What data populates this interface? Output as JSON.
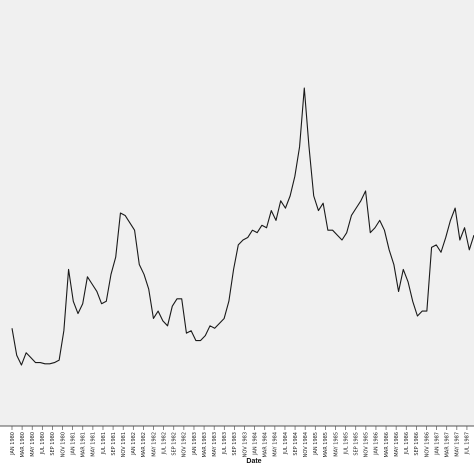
{
  "colors": {
    "plot_background": "#f0f0f0",
    "line": "#1a1a1a",
    "axis": "#555555"
  },
  "chart_data": {
    "type": "line",
    "title": "",
    "xlabel": "Date",
    "ylabel": "",
    "grid": false,
    "legend": "none",
    "tick_labels": [
      "JAN 1980",
      "MAR 1980",
      "MAY 1980",
      "JUL 1980",
      "SEP 1980",
      "NOV 1980",
      "JAN 1981",
      "MAR 1981",
      "MAY 1981",
      "JUL 1981",
      "SEP 1981",
      "NOV 1981",
      "JAN 1982",
      "MAR 1982",
      "MAY 1982",
      "JUL 1982",
      "SEP 1982",
      "NOV 1982",
      "JAN 1983",
      "MAR 1983",
      "MAY 1983",
      "JUL 1983",
      "SEP 1983",
      "NOV 1983",
      "JAN 1984",
      "MAR 1984",
      "MAY 1984",
      "JUL 1984",
      "SEP 1984",
      "NOV 1984",
      "JAN 1985",
      "MAR 1985",
      "MAY 1985",
      "JUL 1985",
      "SEP 1985",
      "NOV 1985",
      "JAN 1986",
      "MAR 1986",
      "MAY 1986",
      "JUL 1986",
      "SEP 1986",
      "NOV 1986",
      "JAN 1987",
      "MAR 1987",
      "MAY 1987",
      "JUL 1987"
    ],
    "ylim": [
      0,
      100
    ],
    "series": [
      {
        "values": [
          26,
          15,
          11,
          16,
          14,
          12,
          12,
          11.5,
          11.5,
          12,
          13,
          25,
          50,
          37,
          32,
          36,
          47,
          44,
          41,
          36,
          37,
          48,
          55,
          73,
          72,
          69,
          66,
          52,
          48,
          42,
          30,
          33,
          29,
          27,
          35,
          38,
          38,
          24,
          25,
          21,
          21,
          23,
          27,
          26,
          28,
          30,
          37,
          50,
          60,
          62,
          63,
          66,
          65,
          68,
          67,
          74,
          70,
          78,
          75,
          80,
          88,
          100,
          124,
          100,
          80,
          74,
          77,
          66,
          66,
          64,
          62,
          65,
          72,
          75,
          78,
          82,
          65,
          67,
          70,
          66,
          58,
          52,
          41,
          50,
          45,
          37,
          31,
          33,
          33,
          59,
          60,
          57,
          63,
          70,
          75,
          62,
          67,
          58,
          64
        ]
      }
    ]
  }
}
